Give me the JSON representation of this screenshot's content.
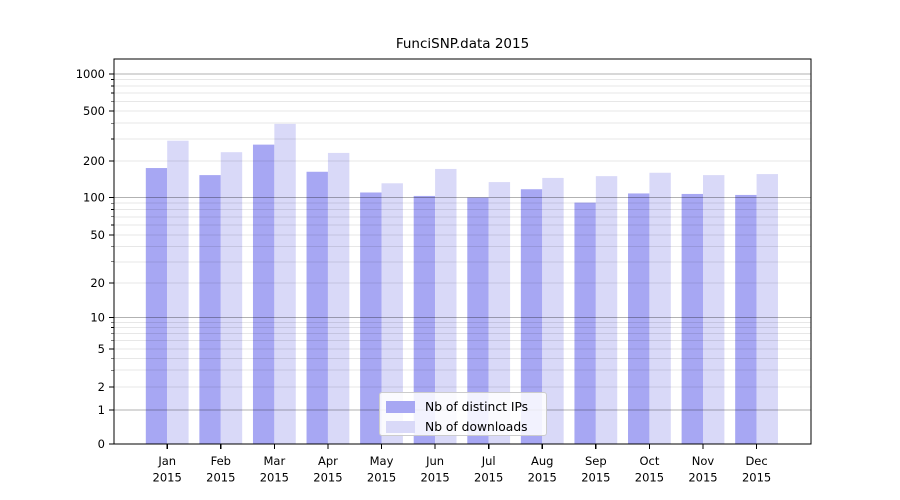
{
  "chart_data": {
    "type": "bar",
    "title": "FunciSNP.data 2015",
    "categories": [
      "Jan",
      "Feb",
      "Mar",
      "Apr",
      "May",
      "Jun",
      "Jul",
      "Aug",
      "Sep",
      "Oct",
      "Nov",
      "Dec"
    ],
    "year_label": "2015",
    "series": [
      {
        "name": "Nb of distinct IPs",
        "color": "#a7a7f3",
        "values": [
          175,
          153,
          270,
          163,
          110,
          103,
          100,
          117,
          91,
          108,
          107,
          105
        ]
      },
      {
        "name": "Nb of downloads",
        "color": "#d9d9f8",
        "values": [
          290,
          235,
          395,
          232,
          131,
          172,
          134,
          145,
          150,
          160,
          153,
          156
        ]
      }
    ],
    "y_axis": {
      "scale": "symlog",
      "ticks": [
        0,
        1,
        2,
        5,
        10,
        20,
        50,
        100,
        200,
        500,
        1000
      ],
      "ylim": [
        0,
        1300
      ]
    },
    "x_axis": {
      "label_lines": 2
    },
    "grid": "on",
    "legend": {
      "position": "bottom-center"
    },
    "colors": {
      "major_gridline": "#b3b3b3",
      "minor_gridline": "#e7e7e7",
      "axis": "#000000",
      "background": "#ffffff"
    }
  }
}
